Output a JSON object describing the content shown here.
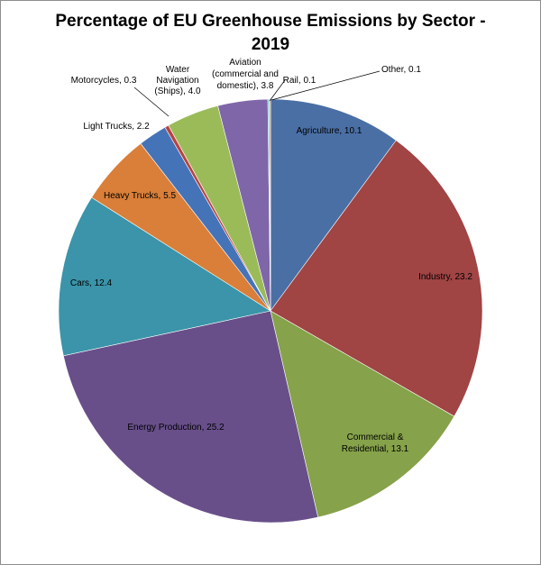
{
  "chart_data": {
    "type": "pie",
    "title_line1": "Percentage of EU Greenhouse Emissions by Sector -",
    "title_line2": "2019",
    "slices": [
      {
        "label": "Agriculture",
        "value": 10.1,
        "color": "#4a6fa5"
      },
      {
        "label": "Industry",
        "value": 23.2,
        "color": "#a04444"
      },
      {
        "label": "Commercial &",
        "label2": "Residential",
        "value": 13.1,
        "color": "#86a24a"
      },
      {
        "label": "Energy Production",
        "value": 25.2,
        "color": "#684f8a"
      },
      {
        "label": "Cars",
        "value": 12.4,
        "color": "#3b94a9"
      },
      {
        "label": "Heavy Trucks",
        "value": 5.5,
        "color": "#d97f39"
      },
      {
        "label": "Light Trucks",
        "value": 2.2,
        "color": "#4573b8"
      },
      {
        "label": "Motorcycles",
        "value": 0.3,
        "color": "#b84343"
      },
      {
        "label": "Water",
        "label2": "Navigation",
        "label3": "(Ships)",
        "value": 4.0,
        "color": "#9bbb59"
      },
      {
        "label": "Aviation",
        "label2": "(commercial and",
        "label3": "domestic)",
        "value": 3.8,
        "color": "#7f66a8"
      },
      {
        "label": "Rail",
        "value": 0.1,
        "color": "#4bacc6"
      },
      {
        "label": "Other",
        "value": 0.1,
        "color": "#c99a6b"
      }
    ]
  }
}
